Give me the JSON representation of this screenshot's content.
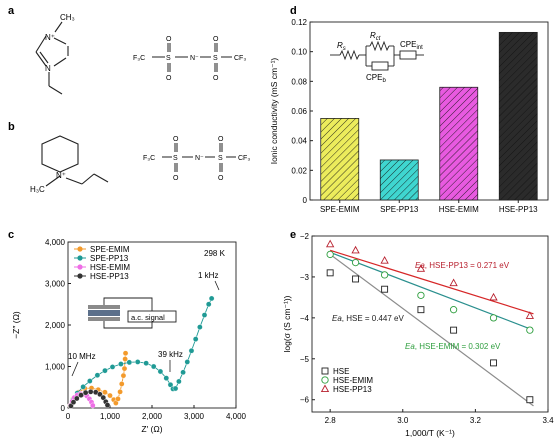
{
  "panel_labels": {
    "a": "a",
    "b": "b",
    "c": "c",
    "d": "d",
    "e": "e"
  },
  "structures": {
    "a": {
      "ch3": "CH₃",
      "n_plus": "N⁺",
      "n": "N",
      "anion": {
        "cf3_left": "F₃C",
        "s1": "S",
        "o1": "O",
        "o2": "O",
        "n_minus": "N⁻",
        "s2": "S",
        "o3": "O",
        "o4": "O",
        "cf3_right": "CF₃"
      }
    },
    "b": {
      "n_plus": "N⁺",
      "h3c": "H₃C",
      "anion": {
        "cf3_left": "F₃C",
        "s1": "S",
        "o1": "O",
        "o2": "O",
        "n_minus": "N⁻",
        "s2": "S",
        "o3": "O",
        "o4": "O",
        "cf3_right": "CF₃"
      }
    }
  },
  "chart_data": [
    {
      "id": "c",
      "type": "scatter",
      "xlabel": "Z′ (Ω)",
      "ylabel": "−Z″ (Ω)",
      "xlim": [
        0,
        4000
      ],
      "ylim": [
        0,
        4000
      ],
      "xticks": [
        0,
        1000,
        2000,
        3000,
        4000
      ],
      "xtick_labels": [
        "0",
        "1,000",
        "2,000",
        "3,000",
        "4,000"
      ],
      "yticks": [
        0,
        1000,
        2000,
        3000,
        4000
      ],
      "ytick_labels": [
        "0",
        "1,000",
        "2,000",
        "3,000",
        "4,000"
      ],
      "temperature_label": "298 K",
      "annotations": {
        "hf": "10 MHz",
        "mid": "39 kHz",
        "lf": "1 kHz"
      },
      "inset_label": "a.c. signal",
      "legend_position": "top-left",
      "series": [
        {
          "name": "SPE-EMIM",
          "color": "#f39a2b",
          "points": [
            [
              50,
              60
            ],
            [
              120,
              220
            ],
            [
              250,
              380
            ],
            [
              400,
              470
            ],
            [
              560,
              480
            ],
            [
              720,
              440
            ],
            [
              880,
              380
            ],
            [
              1000,
              300
            ],
            [
              1090,
              200
            ],
            [
              1140,
              120
            ],
            [
              1190,
              220
            ],
            [
              1240,
              390
            ],
            [
              1280,
              580
            ],
            [
              1320,
              780
            ],
            [
              1345,
              950
            ],
            [
              1360,
              1180
            ],
            [
              1370,
              1320
            ]
          ]
        },
        {
          "name": "SPE-PP13",
          "color": "#1f9a95",
          "points": [
            [
              60,
              60
            ],
            [
              120,
              200
            ],
            [
              220,
              360
            ],
            [
              360,
              510
            ],
            [
              520,
              650
            ],
            [
              700,
              790
            ],
            [
              880,
              900
            ],
            [
              1060,
              990
            ],
            [
              1260,
              1060
            ],
            [
              1460,
              1100
            ],
            [
              1660,
              1110
            ],
            [
              1860,
              1080
            ],
            [
              2040,
              1000
            ],
            [
              2200,
              880
            ],
            [
              2340,
              720
            ],
            [
              2440,
              560
            ],
            [
              2500,
              460
            ],
            [
              2560,
              470
            ],
            [
              2640,
              640
            ],
            [
              2740,
              860
            ],
            [
              2840,
              1110
            ],
            [
              2940,
              1380
            ],
            [
              3040,
              1660
            ],
            [
              3140,
              1950
            ],
            [
              3250,
              2240
            ],
            [
              3350,
              2500
            ],
            [
              3420,
              2640
            ]
          ]
        },
        {
          "name": "HSE-EMIM",
          "color": "#ee6ee6",
          "points": [
            [
              60,
              60
            ],
            [
              100,
              160
            ],
            [
              150,
              250
            ],
            [
              220,
              310
            ],
            [
              300,
              340
            ],
            [
              380,
              330
            ],
            [
              450,
              290
            ],
            [
              510,
              220
            ],
            [
              560,
              140
            ],
            [
              590,
              60
            ]
          ]
        },
        {
          "name": "HSE-PP13",
          "color": "#333333",
          "points": [
            [
              70,
              50
            ],
            [
              130,
              140
            ],
            [
              210,
              230
            ],
            [
              310,
              310
            ],
            [
              420,
              370
            ],
            [
              540,
              390
            ],
            [
              660,
              380
            ],
            [
              760,
              330
            ],
            [
              840,
              250
            ],
            [
              900,
              150
            ],
            [
              940,
              70
            ]
          ]
        }
      ]
    },
    {
      "id": "d",
      "type": "bar",
      "ylabel": "Ionic conductivity (mS cm⁻¹)",
      "ylim": [
        0,
        0.12
      ],
      "yticks": [
        0,
        0.02,
        0.04,
        0.06,
        0.08,
        0.1,
        0.12
      ],
      "ytick_labels": [
        "0",
        "0.02",
        "0.04",
        "0.06",
        "0.08",
        "0.10",
        "0.12"
      ],
      "categories": [
        "SPE-EMIM",
        "SPE-PP13",
        "HSE-EMIM",
        "HSE-PP13"
      ],
      "values": [
        0.055,
        0.027,
        0.076,
        0.113
      ],
      "colors": [
        "#ecec5c",
        "#3fd6d0",
        "#e85ae0",
        "#2b2b2b"
      ],
      "circuit": {
        "rs": "R",
        "rs_sub": "s",
        "rct": "R",
        "rct_sub": "ct",
        "cpe_int": "CPE",
        "cpe_int_sub": "int",
        "cpe_b": "CPE",
        "cpe_b_sub": "b"
      }
    },
    {
      "id": "e",
      "type": "scatter",
      "xlabel": "1,000/T (K⁻¹)",
      "ylabel": "log(σ (S cm⁻¹))",
      "xlim": [
        2.75,
        3.4
      ],
      "ylim": [
        -6.3,
        -2
      ],
      "xticks": [
        2.8,
        3.0,
        3.2,
        3.4
      ],
      "xtick_labels": [
        "2.8",
        "3.0",
        "3.2",
        "3.4"
      ],
      "yticks": [
        -6,
        -5,
        -4,
        -3,
        -2
      ],
      "ytick_labels": [
        "−6",
        "−5",
        "−4",
        "−3",
        "−2"
      ],
      "legend_position": "bottom-left",
      "annotations": [
        {
          "label": "Ea",
          "text": ", HSE-PP13 = 0.271 eV",
          "color": "#b8202e"
        },
        {
          "label": "Ea",
          "text": ", HSE = 0.447 eV",
          "color": "#222222"
        },
        {
          "label": "Ea",
          "text": ", HSE-EMIM = 0.302 eV",
          "color": "#2e9e3e"
        }
      ],
      "series": [
        {
          "name": "HSE",
          "marker": "square",
          "color": "#222222",
          "fit_color": "#8c8c8c",
          "x": [
            2.8,
            2.87,
            2.95,
            3.05,
            3.14,
            3.25,
            3.35
          ],
          "y": [
            -2.9,
            -3.05,
            -3.3,
            -3.8,
            -4.3,
            -5.1,
            -6.0
          ],
          "fit": [
            [
              2.8,
              -2.45
            ],
            [
              3.36,
              -6.15
            ]
          ]
        },
        {
          "name": "HSE-EMIM",
          "marker": "circle",
          "color": "#2e9e3e",
          "fit_color": "#2a8f8e",
          "x": [
            2.8,
            2.87,
            2.95,
            3.05,
            3.14,
            3.25,
            3.35
          ],
          "y": [
            -2.45,
            -2.65,
            -2.95,
            -3.45,
            -3.8,
            -4.0,
            -4.3
          ],
          "fit": [
            [
              2.8,
              -2.4
            ],
            [
              3.36,
              -4.3
            ]
          ]
        },
        {
          "name": "HSE-PP13",
          "marker": "triangle",
          "color": "#b8202e",
          "fit_color": "#d62728",
          "x": [
            2.8,
            2.87,
            2.95,
            3.05,
            3.14,
            3.25,
            3.35
          ],
          "y": [
            -2.2,
            -2.35,
            -2.6,
            -2.8,
            -3.15,
            -3.5,
            -3.95
          ],
          "fit": [
            [
              2.8,
              -2.35
            ],
            [
              3.36,
              -3.9
            ]
          ]
        }
      ]
    }
  ]
}
